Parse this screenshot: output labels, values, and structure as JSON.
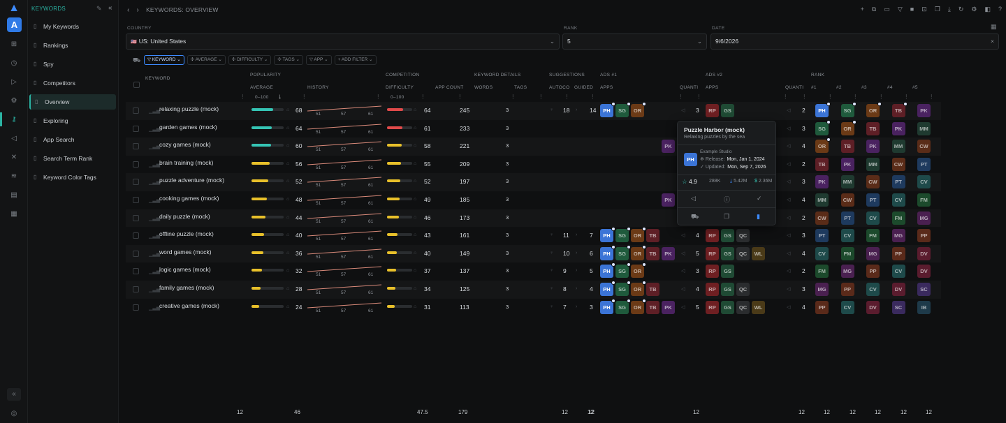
{
  "app": {
    "section_title": "KEYWORDS",
    "breadcrumb": "KEYWORDS: OVERVIEW"
  },
  "sidebar": {
    "items": [
      {
        "label": "My Keywords",
        "icon": "document-icon"
      },
      {
        "label": "Rankings",
        "icon": "key-icon"
      },
      {
        "label": "Spy",
        "icon": "folder-icon"
      },
      {
        "label": "Competitors",
        "icon": "document-icon"
      },
      {
        "label": "Overview",
        "icon": "document-icon",
        "active": true
      },
      {
        "label": "Exploring",
        "icon": "document-icon"
      },
      {
        "label": "App Search",
        "icon": "document-icon"
      },
      {
        "label": "Search Term Rank",
        "icon": "document-icon"
      },
      {
        "label": "Keyword Color Tags",
        "icon": "document-icon"
      }
    ]
  },
  "filters": {
    "country_label": "COUNTRY",
    "country_value": "US: United States",
    "rank_label": "RANK",
    "rank_value": "5",
    "date_label": "DATE",
    "date_value": "9/6/2026"
  },
  "chips": [
    "KEYWORD",
    "AVERAGE",
    "DIFFICULTY",
    "TAGS",
    "APP",
    "ADD FILTER"
  ],
  "headers": {
    "keyword": "KEYWORD",
    "popularity": "POPULARITY",
    "average": "AVERAGE",
    "range1": "0–100",
    "history": "HISTORY",
    "competition": "COMPETITION",
    "difficulty": "DIFFICULTY",
    "range2": "0–100",
    "app_count": "APP COUNT",
    "keyword_details": "KEYWORD DETAILS",
    "words": "WORDS",
    "tags": "TAGS",
    "suggestions": "SUGGESTIONS",
    "autocomplete": "AUTOCO",
    "guided": "GUIDED",
    "ads1": "ADS #1",
    "apps1": "APPS",
    "quantity1": "QUANTI",
    "ads2": "ADS #2",
    "apps2": "APPS",
    "quantity2": "QUANTI",
    "rank": "RANK",
    "r1": "#1",
    "r2": "#2",
    "r3": "#3",
    "r4": "#4",
    "r5": "#5"
  },
  "colors": {
    "PH": "#3b74d6",
    "SG": "#1f5a3c",
    "OR": "#6b3a16",
    "TB": "#5e1f26",
    "PK": "#4a2260",
    "RP": "#6e1f22",
    "GS": "#1f4a34",
    "QC": "#2a2c2e",
    "WL": "#4a3a18",
    "MM": "#1f3a30",
    "CW": "#5a2c18",
    "PT": "#1e3a5e",
    "CV": "#1e4a4a",
    "FM": "#1c4a2c",
    "MG": "#4a2050",
    "PP": "#5a2a1a",
    "DV": "#5a1c2e",
    "SC": "#3a2a5e",
    "IB": "#1e3a4a"
  },
  "rows": [
    {
      "keyword": "relaxing puzzle (mock)",
      "avg": 68,
      "bar": 0.68,
      "bar_color": "#35c4b4",
      "hist": [
        51,
        57,
        61
      ],
      "diff": 64,
      "diff_bar": 0.64,
      "diff_color": "#e04a4a",
      "app_count": 245,
      "words": 3,
      "auto": 18,
      "guided": 14,
      "ads1": [
        "PH",
        "SG",
        "OR"
      ],
      "q1": 3,
      "ads2": [
        "RP",
        "GS"
      ],
      "q2": 2,
      "ranks": [
        "PH",
        "SG",
        "OR",
        "TB",
        "PK"
      ]
    },
    {
      "keyword": "garden games (mock)",
      "avg": 64,
      "bar": 0.64,
      "bar_color": "#35c4b4",
      "hist": [
        51,
        57,
        61
      ],
      "diff": 61,
      "diff_bar": 0.61,
      "diff_color": "#e04a4a",
      "app_count": 233,
      "words": 3,
      "auto": "",
      "guided": "",
      "ads1": [],
      "q1": 4,
      "ads2": [
        "RP",
        "GS",
        "QC"
      ],
      "q2": 3,
      "ranks": [
        "SG",
        "OR",
        "TB",
        "PK",
        "MM"
      ]
    },
    {
      "keyword": "cozy games (mock)",
      "avg": 60,
      "bar": 0.6,
      "bar_color": "#35c4b4",
      "hist": [
        51,
        57,
        61
      ],
      "diff": 58,
      "diff_bar": 0.58,
      "diff_color": "#e8c02a",
      "app_count": 221,
      "words": 3,
      "auto": "",
      "guided": "",
      "ads1": [
        "PK"
      ],
      "q1": 5,
      "ads2": [
        "RP",
        "GS",
        "QC",
        "WL"
      ],
      "q2": 4,
      "ranks": [
        "OR",
        "TB",
        "PK",
        "MM",
        "CW"
      ]
    },
    {
      "keyword": "brain training (mock)",
      "avg": 56,
      "bar": 0.56,
      "bar_color": "#e8c02a",
      "hist": [
        51,
        57,
        61
      ],
      "diff": 55,
      "diff_bar": 0.55,
      "diff_color": "#e8c02a",
      "app_count": 209,
      "words": 3,
      "auto": "",
      "guided": "",
      "ads1": [],
      "q1": 3,
      "ads2": [
        "RP",
        "GS"
      ],
      "q2": 2,
      "ranks": [
        "TB",
        "PK",
        "MM",
        "CW",
        "PT"
      ]
    },
    {
      "keyword": "puzzle adventure (mock)",
      "avg": 52,
      "bar": 0.52,
      "bar_color": "#e8c02a",
      "hist": [
        51,
        57,
        61
      ],
      "diff": 52,
      "diff_bar": 0.52,
      "diff_color": "#e8c02a",
      "app_count": 197,
      "words": 3,
      "auto": "",
      "guided": "",
      "ads1": [],
      "q1": 4,
      "ads2": [
        "RP",
        "GS",
        "QC"
      ],
      "q2": 3,
      "ranks": [
        "PK",
        "MM",
        "CW",
        "PT",
        "CV"
      ]
    },
    {
      "keyword": "cooking games (mock)",
      "avg": 48,
      "bar": 0.48,
      "bar_color": "#e8c02a",
      "hist": [
        51,
        57,
        61
      ],
      "diff": 49,
      "diff_bar": 0.49,
      "diff_color": "#e8c02a",
      "app_count": 185,
      "words": 3,
      "auto": "",
      "guided": "",
      "ads1": [
        "PK"
      ],
      "q1": 5,
      "ads2": [
        "RP",
        "GS",
        "QC",
        "WL"
      ],
      "q2": 4,
      "ranks": [
        "MM",
        "CW",
        "PT",
        "CV",
        "FM"
      ]
    },
    {
      "keyword": "daily puzzle (mock)",
      "avg": 44,
      "bar": 0.44,
      "bar_color": "#e8c02a",
      "hist": [
        51,
        57,
        61
      ],
      "diff": 46,
      "diff_bar": 0.46,
      "diff_color": "#e8c02a",
      "app_count": 173,
      "words": 3,
      "auto": "",
      "guided": "",
      "ads1": [],
      "q1": 3,
      "ads2": [
        "RP",
        "GS"
      ],
      "q2": 2,
      "ranks": [
        "CW",
        "PT",
        "CV",
        "FM",
        "MG"
      ]
    },
    {
      "keyword": "offline puzzle (mock)",
      "avg": 40,
      "bar": 0.4,
      "bar_color": "#e8c02a",
      "hist": [
        51,
        57,
        61
      ],
      "diff": 43,
      "diff_bar": 0.43,
      "diff_color": "#e8c02a",
      "app_count": 161,
      "words": 3,
      "auto": 11,
      "guided": 7,
      "ads1": [
        "PH",
        "SG",
        "OR",
        "TB"
      ],
      "q1": 4,
      "ads2": [
        "RP",
        "GS",
        "QC"
      ],
      "q2": 3,
      "ranks": [
        "PT",
        "CV",
        "FM",
        "MG",
        "PP"
      ]
    },
    {
      "keyword": "word games (mock)",
      "avg": 36,
      "bar": 0.36,
      "bar_color": "#e8c02a",
      "hist": [
        51,
        57,
        61
      ],
      "diff": 40,
      "diff_bar": 0.4,
      "diff_color": "#e8c02a",
      "app_count": 149,
      "words": 3,
      "auto": 10,
      "guided": 6,
      "ads1": [
        "PH",
        "SG",
        "OR",
        "TB",
        "PK"
      ],
      "q1": 5,
      "ads2": [
        "RP",
        "GS",
        "QC",
        "WL"
      ],
      "q2": 4,
      "ranks": [
        "CV",
        "FM",
        "MG",
        "PP",
        "DV"
      ]
    },
    {
      "keyword": "logic games (mock)",
      "avg": 32,
      "bar": 0.32,
      "bar_color": "#e8c02a",
      "hist": [
        51,
        57,
        61
      ],
      "diff": 37,
      "diff_bar": 0.37,
      "diff_color": "#e8c02a",
      "app_count": 137,
      "words": 3,
      "auto": 9,
      "guided": 5,
      "ads1": [
        "PH",
        "SG",
        "OR"
      ],
      "q1": 3,
      "ads2": [
        "RP",
        "GS"
      ],
      "q2": 2,
      "ranks": [
        "FM",
        "MG",
        "PP",
        "CV",
        "DV"
      ]
    },
    {
      "keyword": "family games (mock)",
      "avg": 28,
      "bar": 0.28,
      "bar_color": "#e8c02a",
      "hist": [
        51,
        57,
        61
      ],
      "diff": 34,
      "diff_bar": 0.34,
      "diff_color": "#e8c02a",
      "app_count": 125,
      "words": 3,
      "auto": 8,
      "guided": 4,
      "ads1": [
        "PH",
        "SG",
        "OR",
        "TB"
      ],
      "q1": 4,
      "ads2": [
        "RP",
        "GS",
        "QC"
      ],
      "q2": 3,
      "ranks": [
        "MG",
        "PP",
        "CV",
        "DV",
        "SC"
      ]
    },
    {
      "keyword": "creative games (mock)",
      "avg": 24,
      "bar": 0.24,
      "bar_color": "#e8c02a",
      "hist": [
        51,
        57,
        61
      ],
      "diff": 31,
      "diff_bar": 0.31,
      "diff_color": "#e8c02a",
      "app_count": 113,
      "words": 3,
      "auto": 7,
      "guided": 3,
      "ads1": [
        "PH",
        "SG",
        "OR",
        "TB",
        "PK"
      ],
      "q1": 5,
      "ads2": [
        "RP",
        "GS",
        "QC",
        "WL"
      ],
      "q2": 4,
      "ranks": [
        "PP",
        "CV",
        "DV",
        "SC",
        "IB"
      ]
    }
  ],
  "popover": {
    "title": "Puzzle Harbor (mock)",
    "subtitle": "Relaxing puzzles by the sea",
    "icon_text": "PH",
    "developer": "Example Studio",
    "release_label": "Release:",
    "release": "Mon, Jan 1, 2024",
    "updated_label": "Updated:",
    "updated": "Mon, Sep 7, 2026",
    "rating": "4.9",
    "reviews": "288K",
    "downloads": "5.42M",
    "revenue": "2.36M"
  },
  "footer": {
    "keyword": "12",
    "avg": "46",
    "diff": "47.5",
    "app_count": "179",
    "auto": "12",
    "guided": "12",
    "ads1": "12",
    "q1": "12",
    "q2": "12",
    "r1": "12",
    "r2": "12",
    "r3": "12",
    "r4": "12",
    "r5": "12"
  }
}
